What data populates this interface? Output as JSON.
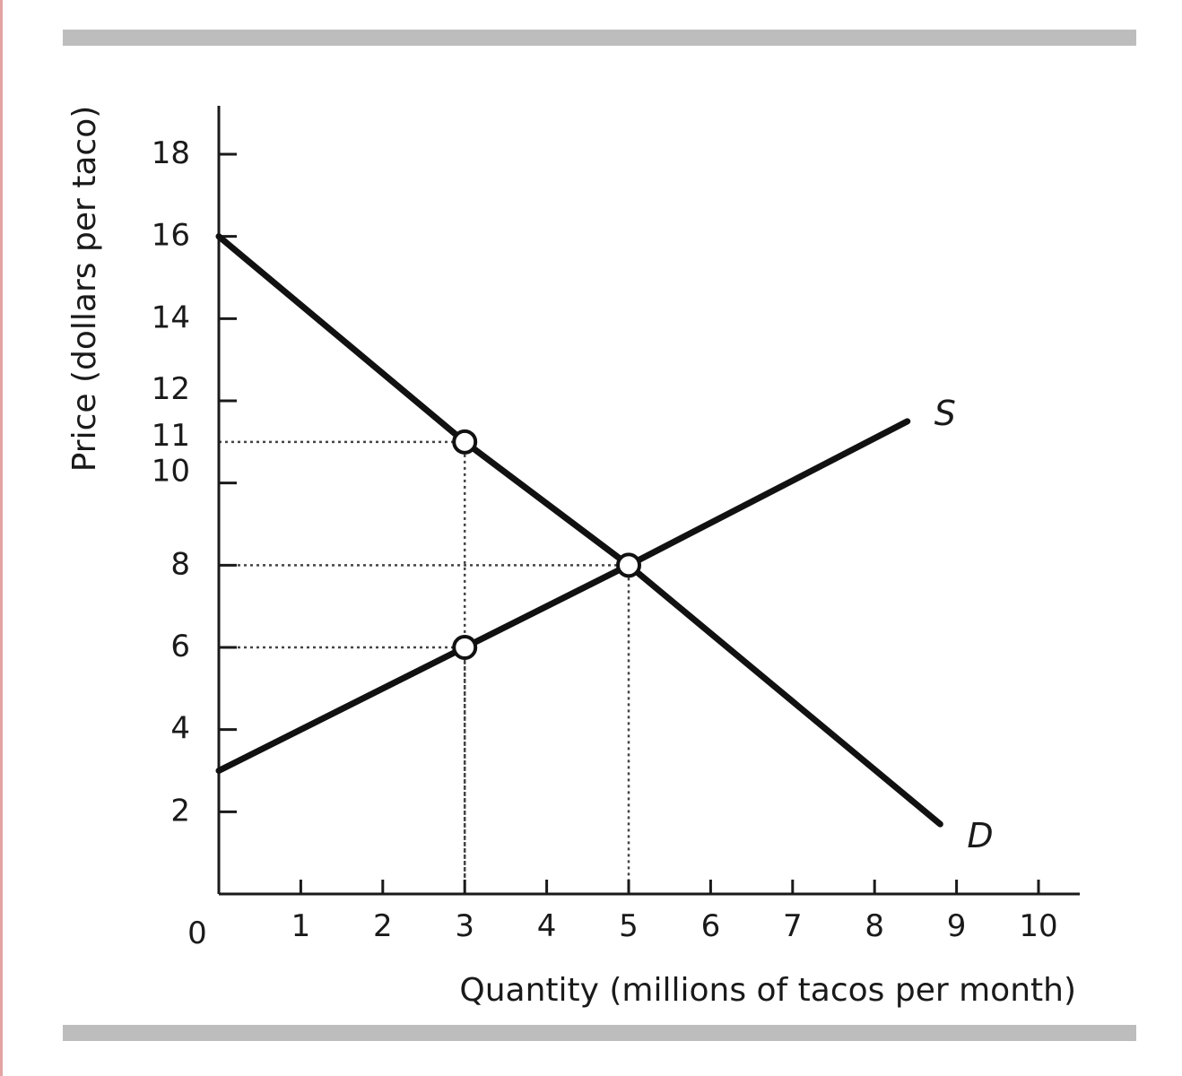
{
  "chart_data": {
    "type": "line",
    "xlabel": "Quantity (millions of tacos per month)",
    "ylabel": "Price (dollars per taco)",
    "origin_label": "0",
    "xlim": [
      0,
      10
    ],
    "ylim": [
      0,
      18
    ],
    "x_ticks": [
      1,
      2,
      3,
      4,
      5,
      6,
      7,
      8,
      9,
      10
    ],
    "y_ticks": [
      2,
      4,
      6,
      8,
      10,
      11,
      12,
      14,
      16,
      18
    ],
    "series": [
      {
        "name": "D",
        "color": "#111111",
        "x": [
          0,
          3,
          5,
          8.8
        ],
        "y": [
          16,
          11,
          8,
          1.7
        ]
      },
      {
        "name": "S",
        "color": "#111111",
        "x": [
          0,
          3,
          5,
          8.4
        ],
        "y": [
          3,
          6,
          8,
          11.5
        ]
      }
    ],
    "points": [
      {
        "x": 3,
        "y": 11
      },
      {
        "x": 5,
        "y": 8
      },
      {
        "x": 3,
        "y": 6
      }
    ],
    "guides": [
      {
        "x": 3,
        "y": 11
      },
      {
        "x": 5,
        "y": 8
      },
      {
        "x": 3,
        "y": 6
      }
    ],
    "grid": false,
    "legend": "none"
  }
}
